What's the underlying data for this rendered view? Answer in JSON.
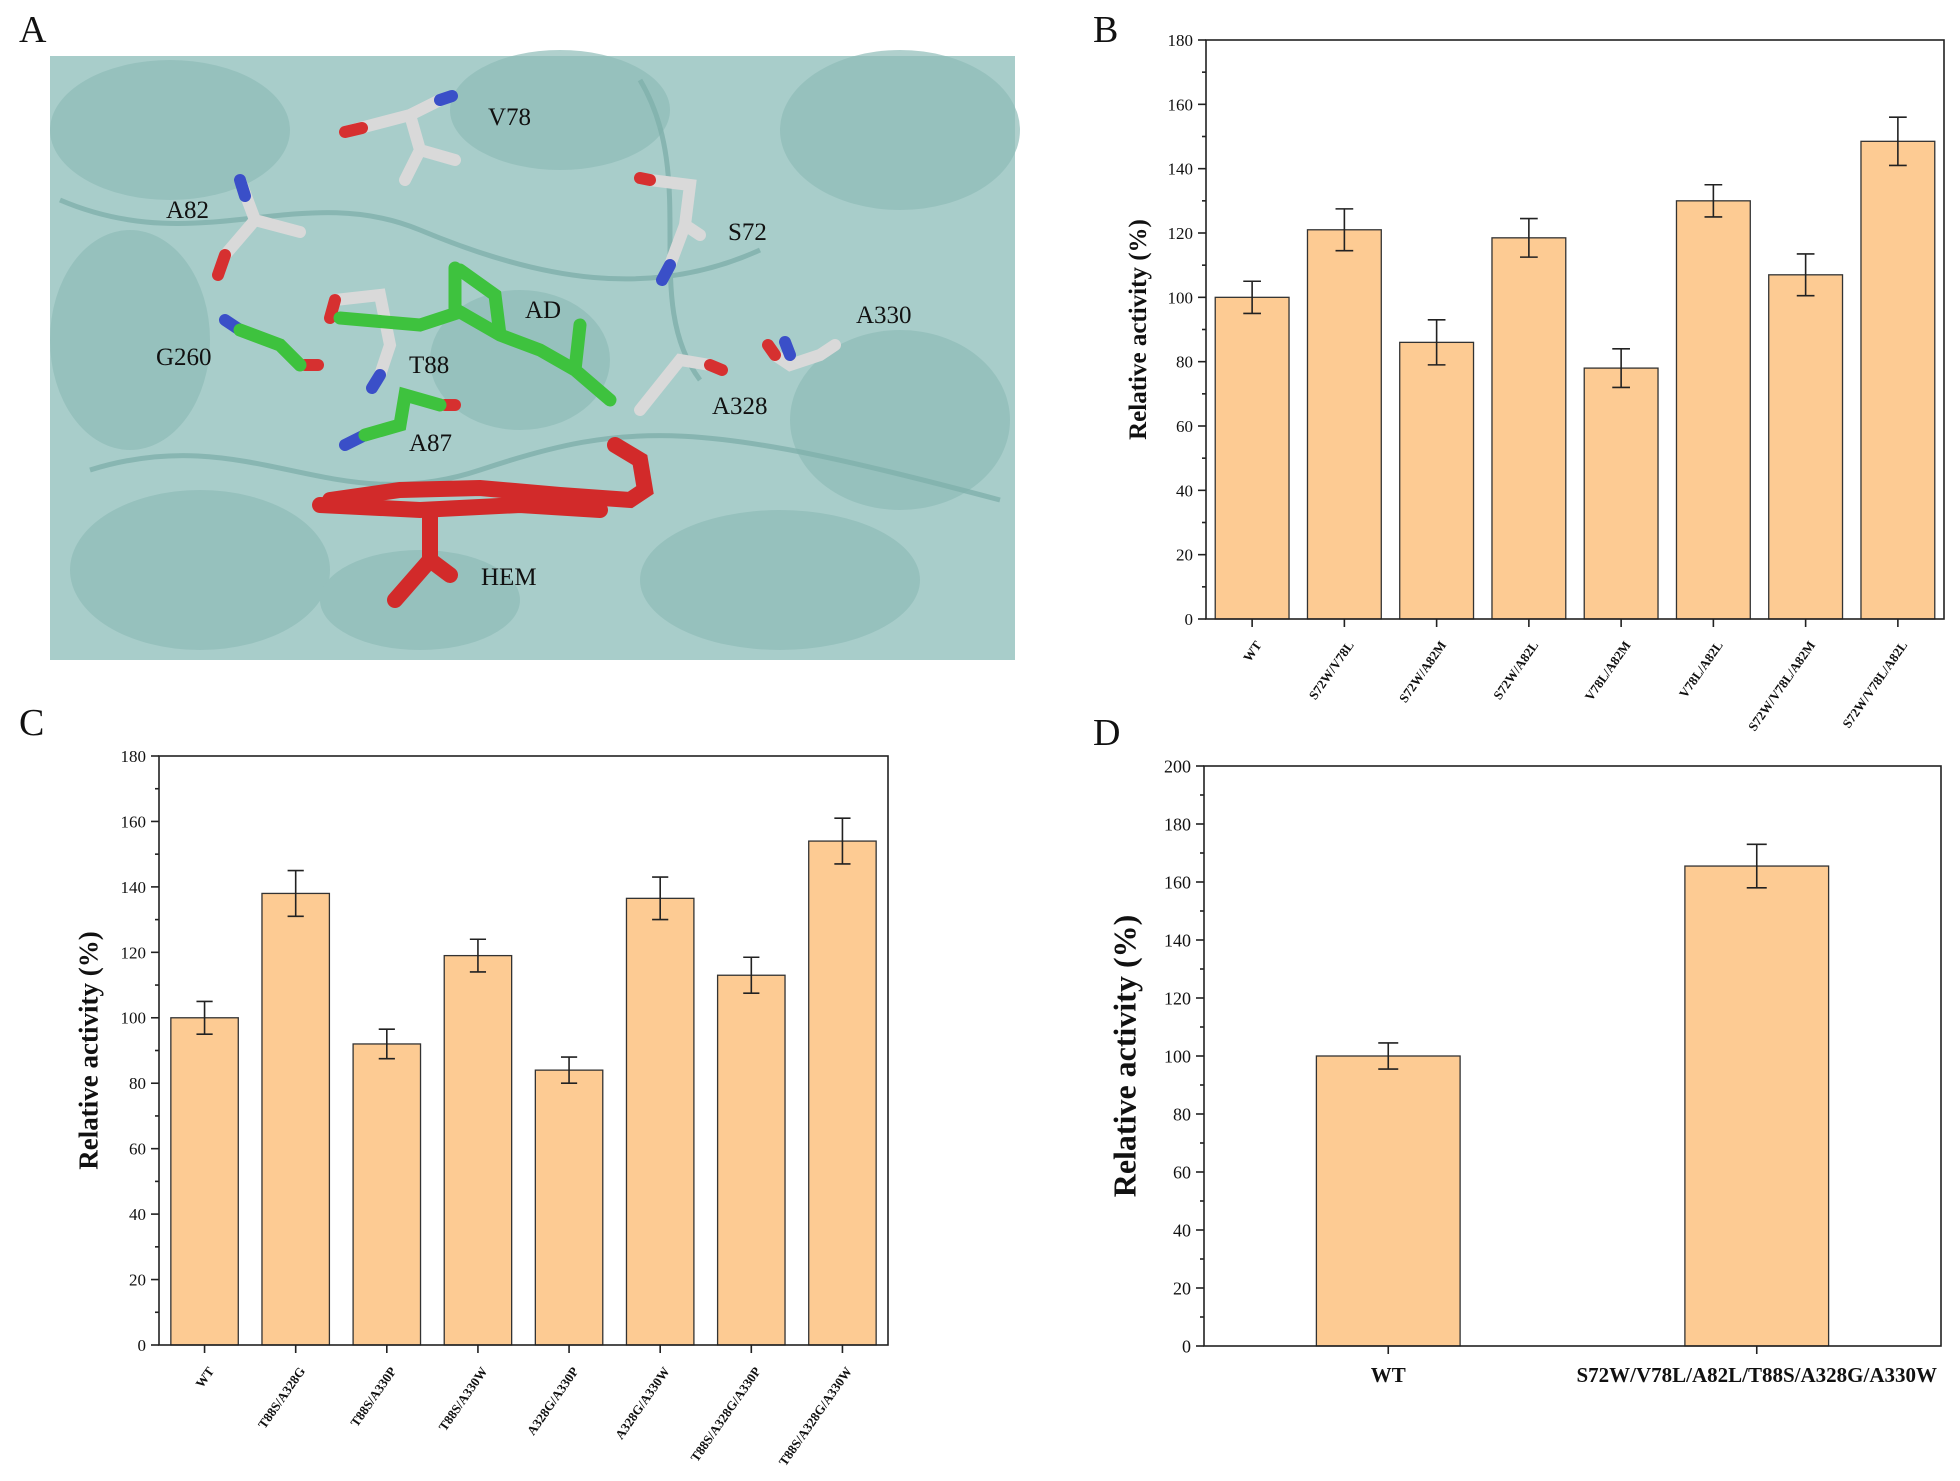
{
  "structure": {
    "panel_label": "A",
    "labels": [
      "V78",
      "A82",
      "S72",
      "AD",
      "A330",
      "G260",
      "T88",
      "A328",
      "A87",
      "HEM"
    ]
  },
  "chart_data": [
    {
      "type": "bar",
      "panel_label": "B",
      "ylabel": "Relative activity (%)",
      "categories": [
        "WT",
        "S72W/V78L",
        "S72W/A82M",
        "S72W/A82L",
        "V78L/A82M",
        "V78L/A82L",
        "S72W/V78L/A82M",
        "S72W/V78L/A82L"
      ],
      "values": [
        100,
        121,
        86,
        118.5,
        78,
        130,
        107,
        148.5
      ],
      "errors": [
        5,
        6.5,
        7,
        6,
        6,
        5,
        6.5,
        7.5
      ],
      "color": "#fdcb93",
      "ylim": [
        0,
        180
      ],
      "yticks": [
        0,
        20,
        40,
        60,
        80,
        100,
        120,
        140,
        160,
        180
      ]
    },
    {
      "type": "bar",
      "panel_label": "C",
      "ylabel": "Relative activity (%)",
      "categories": [
        "WT",
        "T88S/A328G",
        "T88S/A330P",
        "T88S/A330W",
        "A328G/A330P",
        "A328G/A330W",
        "T88S/A328G/A330P",
        "T88S/A328G/A330W"
      ],
      "values": [
        100,
        138,
        92,
        119,
        84,
        136.5,
        113,
        154
      ],
      "errors": [
        5,
        7,
        4.5,
        5,
        4,
        6.5,
        5.5,
        7
      ],
      "color": "#fdcb93",
      "ylim": [
        0,
        180
      ],
      "yticks": [
        0,
        20,
        40,
        60,
        80,
        100,
        120,
        140,
        160,
        180
      ]
    },
    {
      "type": "bar",
      "panel_label": "D",
      "ylabel": "Relative activity (%)",
      "categories": [
        "WT",
        "S72W/V78L/A82L/T88S/A328G/A330W"
      ],
      "values": [
        100,
        165.5
      ],
      "errors": [
        4.5,
        7.5
      ],
      "color": "#fdcb93",
      "ylim": [
        0,
        200
      ],
      "yticks": [
        0,
        20,
        40,
        60,
        80,
        100,
        120,
        140,
        160,
        180,
        200
      ]
    }
  ]
}
